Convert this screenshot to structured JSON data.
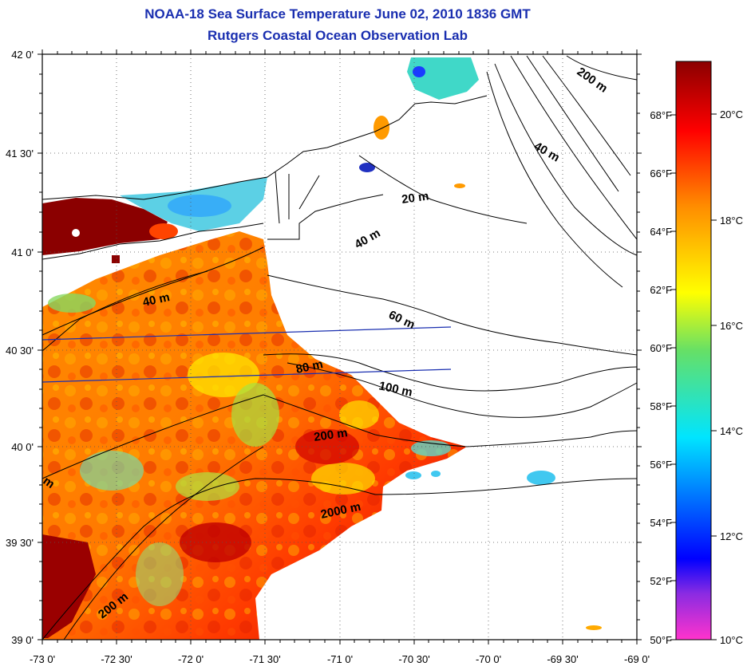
{
  "title": "NOAA-18 Sea Surface Temperature June 02, 2010 1836 GMT",
  "subtitle": "Rutgers Coastal Ocean Observation Lab",
  "map": {
    "lat_labels": [
      "42 0'",
      "41 30'",
      "41 0'",
      "40 30'",
      "40 0'",
      "39 30'",
      "39 0'"
    ],
    "lon_labels": [
      "-73 0'",
      "-72 30'",
      "-72 0'",
      "-71 30'",
      "-71 0'",
      "-70 30'",
      "-70 0'",
      "-69 30'",
      "-69 0'"
    ],
    "contour_labels": [
      "200 m",
      "40 m",
      "20 m",
      "40 m",
      "40 m",
      "60 m",
      "80 m",
      "100 m",
      "200 m",
      "2000 m",
      "200 m",
      "m"
    ]
  },
  "colorbar": {
    "fahrenheit": [
      "68°F",
      "66°F",
      "64°F",
      "62°F",
      "60°F",
      "58°F",
      "56°F",
      "54°F",
      "52°F",
      "50°F"
    ],
    "celsius": [
      "20°C",
      "18°C",
      "16°C",
      "14°C",
      "12°C",
      "10°C"
    ],
    "colors": [
      "#ff33cc",
      "#8a2be2",
      "#0000ff",
      "#00e5ff",
      "#ffff00",
      "#ff8c00",
      "#ff0000",
      "#8b0000"
    ]
  }
}
